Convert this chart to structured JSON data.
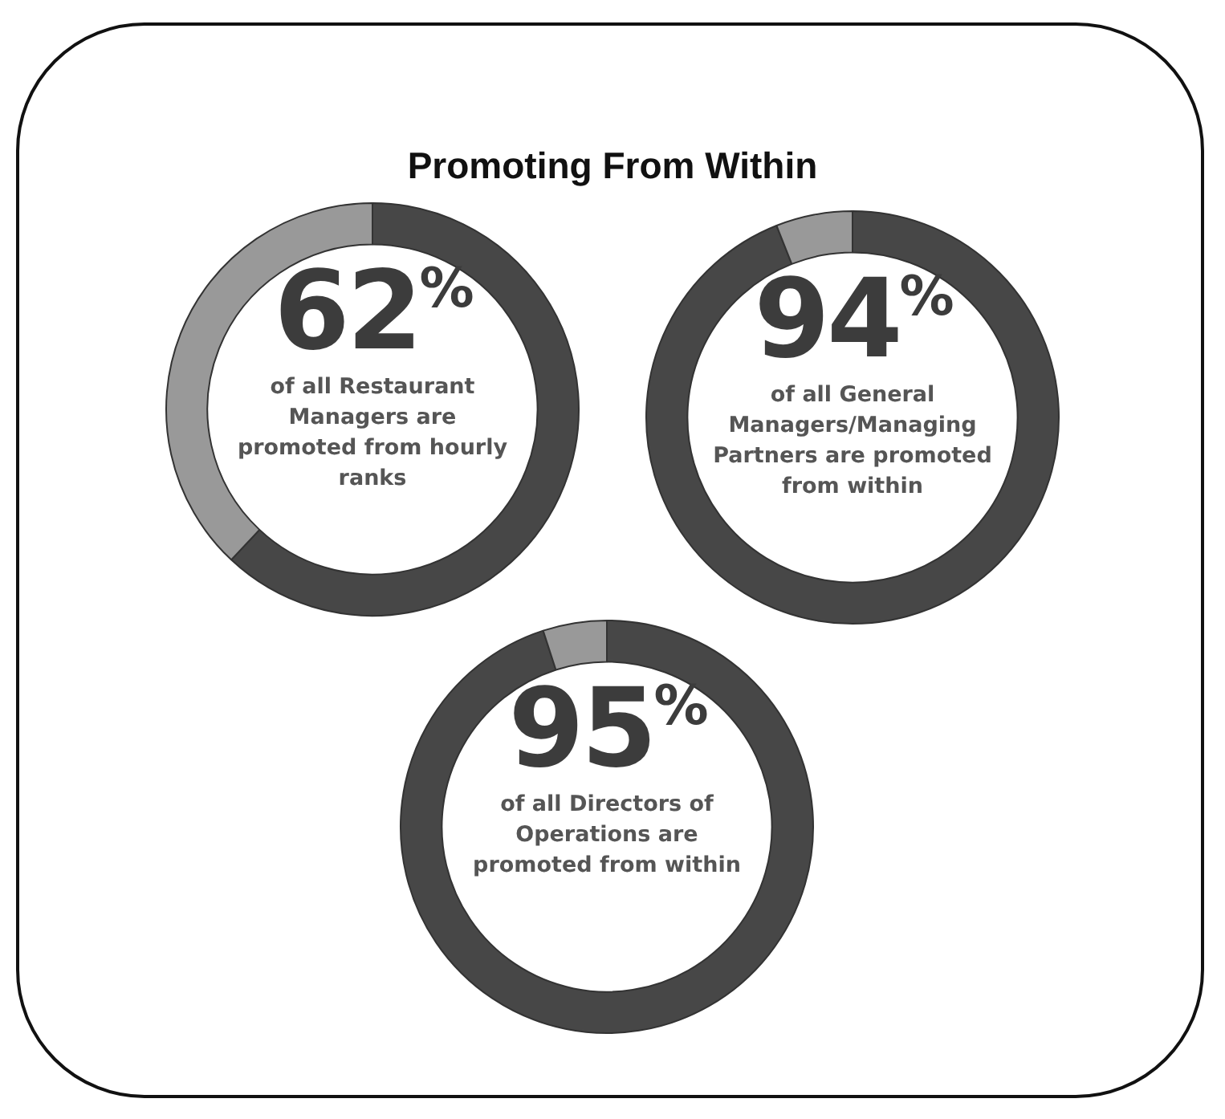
{
  "chart_data": [
    {
      "type": "donut",
      "title": "Promoting From Within",
      "categories": [
        null,
        null
      ],
      "values": [
        62,
        38
      ],
      "colors": [
        "#474747",
        "#999999"
      ],
      "value_labels": [
        "62%",
        null
      ],
      "annotations": [
        "of all Restaurant Managers are promoted from hourly ranks"
      ],
      "legend": false
    },
    {
      "type": "donut",
      "categories": [
        null,
        null
      ],
      "values": [
        94,
        6
      ],
      "colors": [
        "#474747",
        "#999999"
      ],
      "value_labels": [
        "94%",
        null
      ],
      "annotations": [
        "of all General Managers/Managing Partners are promoted from within"
      ],
      "legend": false
    },
    {
      "type": "donut",
      "categories": [
        null,
        null
      ],
      "values": [
        95,
        5
      ],
      "colors": [
        "#474747",
        "#999999"
      ],
      "value_labels": [
        "95%",
        null
      ],
      "annotations": [
        "of all Directors of Operations are promoted from within"
      ],
      "legend": false
    }
  ]
}
